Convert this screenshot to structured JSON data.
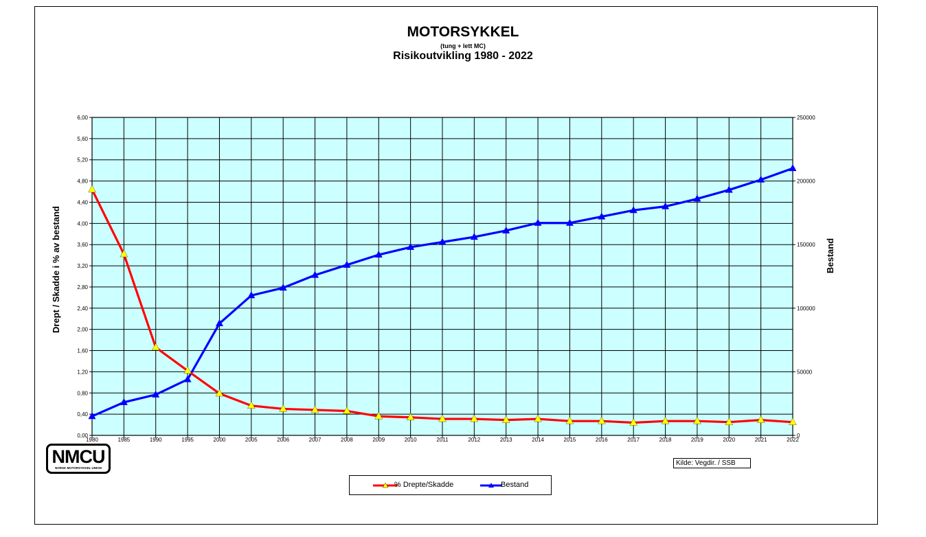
{
  "title": "MOTORSYKKEL",
  "subtitle": "(tung + lett MC)",
  "subtitle2": "Risikoutvikling 1980 - 2022",
  "source": "Kilde: Vegdir. / SSB",
  "logo": {
    "text": "NMCU",
    "subtext": "NORSK MOTORSYKKEL UNION"
  },
  "colors": {
    "plot_bg": "#ccffff",
    "series_risk": "#ff0000",
    "series_stock": "#0000ff",
    "marker_risk": "#ffff00",
    "grid": "#000000"
  },
  "chart_data": {
    "type": "line",
    "categories": [
      "1980",
      "1985",
      "1990",
      "1995",
      "2000",
      "2005",
      "2006",
      "2007",
      "2008",
      "2009",
      "2010",
      "2011",
      "2012",
      "2013",
      "2014",
      "2015",
      "2016",
      "2017",
      "2018",
      "2019",
      "2020",
      "2021",
      "2022"
    ],
    "series": [
      {
        "name": "% Drepte/Skadde",
        "axis": "left",
        "values": [
          4.64,
          3.42,
          1.66,
          1.22,
          0.79,
          0.56,
          0.5,
          0.48,
          0.46,
          0.36,
          0.34,
          0.31,
          0.31,
          0.29,
          0.31,
          0.27,
          0.27,
          0.24,
          0.27,
          0.27,
          0.25,
          0.29,
          0.25
        ]
      },
      {
        "name": "Bestand",
        "axis": "right",
        "values": [
          15000,
          26000,
          32000,
          44000,
          88000,
          110000,
          116000,
          126000,
          134000,
          142000,
          148000,
          152000,
          156000,
          161000,
          167000,
          167000,
          172000,
          177000,
          180000,
          186000,
          193000,
          201000,
          210000
        ]
      }
    ],
    "ylabel_left": "Drept / Skadde i % av bestand",
    "ylabel_right": "Bestand",
    "ylim_left": [
      0,
      6
    ],
    "ylim_right": [
      0,
      250000
    ],
    "yticks_left": [
      "0,00",
      "0,40",
      "0,80",
      "1,20",
      "1,60",
      "2,00",
      "2,40",
      "2,80",
      "3,20",
      "3,60",
      "4,00",
      "4,40",
      "4,80",
      "5,20",
      "5,60",
      "6,00"
    ],
    "yticks_right": [
      "0",
      "50000",
      "100000",
      "150000",
      "200000",
      "250000"
    ],
    "grid": true,
    "legend_position": "bottom"
  }
}
